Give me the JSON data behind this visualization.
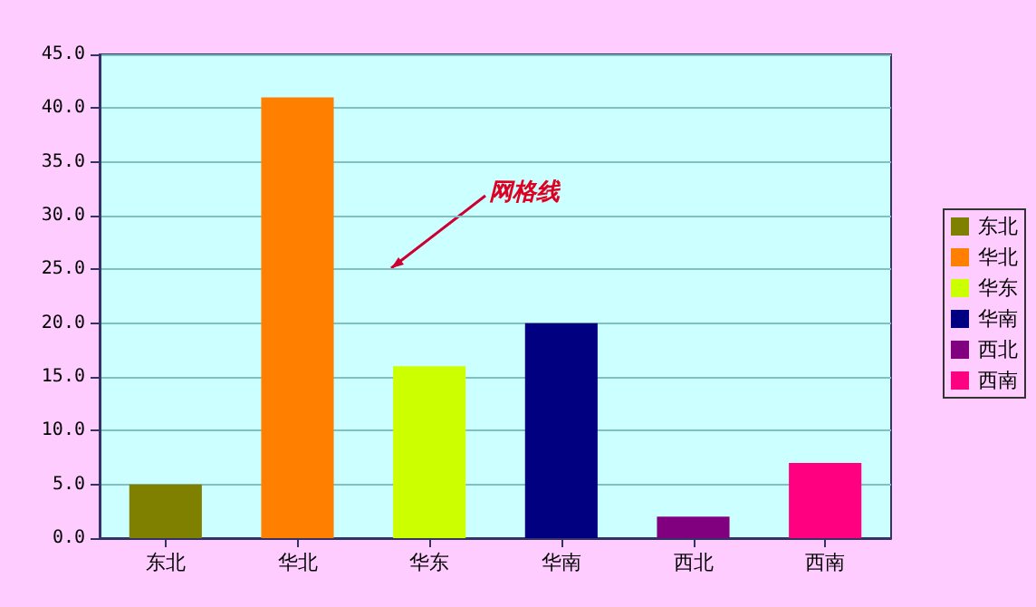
{
  "chart_data": {
    "type": "bar",
    "categories": [
      "东北",
      "华北",
      "华东",
      "华南",
      "西北",
      "西南"
    ],
    "series": [
      {
        "name": "东北",
        "color": "#808000",
        "values": [
          5.0,
          null,
          null,
          null,
          null,
          null
        ]
      },
      {
        "name": "华北",
        "color": "#ff8000",
        "values": [
          null,
          41.0,
          null,
          null,
          null,
          null
        ]
      },
      {
        "name": "华东",
        "color": "#ccff00",
        "values": [
          null,
          null,
          16.0,
          null,
          null,
          null
        ]
      },
      {
        "name": "华南",
        "color": "#000080",
        "values": [
          null,
          null,
          null,
          20.0,
          null,
          null
        ]
      },
      {
        "name": "西北",
        "color": "#800080",
        "values": [
          null,
          null,
          null,
          null,
          2.0,
          null
        ]
      },
      {
        "name": "西南",
        "color": "#ff0080",
        "values": [
          null,
          null,
          null,
          null,
          null,
          7.0
        ]
      }
    ],
    "ylim": [
      0,
      45
    ],
    "yticks": [
      {
        "value": 0,
        "label": "0.0"
      },
      {
        "value": 5,
        "label": "5.0"
      },
      {
        "value": 10,
        "label": "10.0"
      },
      {
        "value": 15,
        "label": "15.0"
      },
      {
        "value": 20,
        "label": "20.0"
      },
      {
        "value": 25,
        "label": "25.0"
      },
      {
        "value": 30,
        "label": "30.0"
      },
      {
        "value": 35,
        "label": "35.0"
      },
      {
        "value": 40,
        "label": "40.0"
      },
      {
        "value": 45,
        "label": "45.0"
      }
    ],
    "grid": "y",
    "legend": "right",
    "annotations": [
      "网格线"
    ]
  }
}
